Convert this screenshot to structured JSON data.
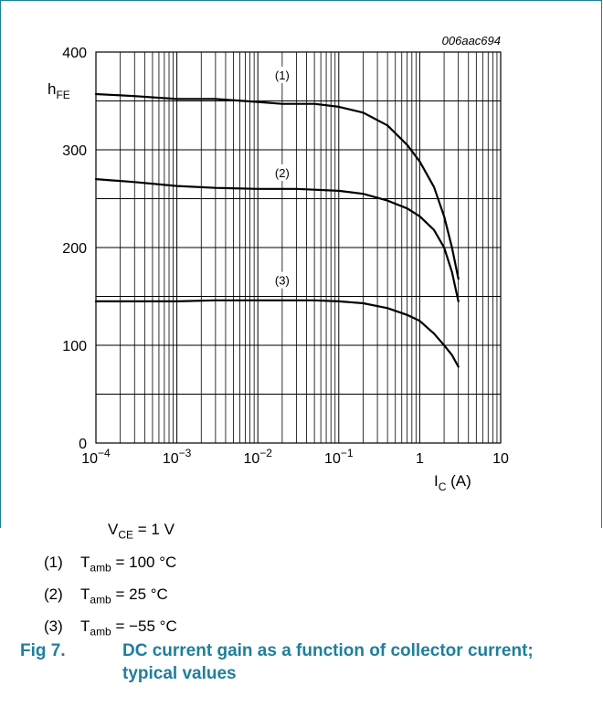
{
  "chart_data": {
    "type": "line",
    "code": "006aac694",
    "ylabel_main": "h",
    "ylabel_sub": "FE",
    "xlabel_main": "I",
    "xlabel_sub": "C",
    "xlabel_unit": "(A)",
    "x_scale": "log",
    "xlim": [
      0.0001,
      10
    ],
    "ylim": [
      0,
      400
    ],
    "grid": true,
    "x_ticks": [
      {
        "value": 0.0001,
        "base": "10",
        "exp": "−4"
      },
      {
        "value": 0.001,
        "base": "10",
        "exp": "−3"
      },
      {
        "value": 0.01,
        "base": "10",
        "exp": "−2"
      },
      {
        "value": 0.1,
        "base": "10",
        "exp": "−1"
      },
      {
        "value": 1,
        "base": "1",
        "exp": ""
      },
      {
        "value": 10,
        "base": "10",
        "exp": ""
      }
    ],
    "y_ticks": [
      {
        "value": 0,
        "label": "0"
      },
      {
        "value": 100,
        "label": "100"
      },
      {
        "value": 200,
        "label": "200"
      },
      {
        "value": 300,
        "label": "300"
      },
      {
        "value": 400,
        "label": "400"
      }
    ],
    "series": [
      {
        "label": "(1)",
        "label_at": [
          0.02,
          372
        ],
        "points": [
          [
            0.0001,
            357
          ],
          [
            0.0003,
            355
          ],
          [
            0.001,
            352
          ],
          [
            0.003,
            352
          ],
          [
            0.01,
            349
          ],
          [
            0.02,
            347
          ],
          [
            0.05,
            347
          ],
          [
            0.1,
            344
          ],
          [
            0.2,
            338
          ],
          [
            0.4,
            325
          ],
          [
            0.7,
            305
          ],
          [
            1.0,
            288
          ],
          [
            1.5,
            262
          ],
          [
            2.0,
            232
          ],
          [
            2.5,
            200
          ],
          [
            3.0,
            168
          ]
        ]
      },
      {
        "label": "(2)",
        "label_at": [
          0.02,
          272
        ],
        "points": [
          [
            0.0001,
            270
          ],
          [
            0.0003,
            267
          ],
          [
            0.001,
            263
          ],
          [
            0.003,
            261
          ],
          [
            0.01,
            260
          ],
          [
            0.03,
            260
          ],
          [
            0.1,
            258
          ],
          [
            0.2,
            255
          ],
          [
            0.4,
            248
          ],
          [
            0.7,
            240
          ],
          [
            1.0,
            232
          ],
          [
            1.5,
            218
          ],
          [
            2.0,
            200
          ],
          [
            2.5,
            175
          ],
          [
            3.0,
            145
          ]
        ]
      },
      {
        "label": "(3)",
        "label_at": [
          0.02,
          162
        ],
        "points": [
          [
            0.0001,
            145
          ],
          [
            0.001,
            145
          ],
          [
            0.003,
            146
          ],
          [
            0.01,
            146
          ],
          [
            0.05,
            146
          ],
          [
            0.1,
            145
          ],
          [
            0.2,
            143
          ],
          [
            0.4,
            138
          ],
          [
            0.7,
            131
          ],
          [
            1.0,
            125
          ],
          [
            1.5,
            112
          ],
          [
            2.0,
            100
          ],
          [
            2.5,
            90
          ],
          [
            3.0,
            78
          ]
        ]
      }
    ]
  },
  "conditions": {
    "vce": {
      "main": "V",
      "sub": "CE",
      "rest": " = 1 V"
    },
    "items": [
      {
        "num": "(1)",
        "main": "T",
        "sub": "amb",
        "rest": " = 100 °C"
      },
      {
        "num": "(2)",
        "main": "T",
        "sub": "amb",
        "rest": " = 25 °C"
      },
      {
        "num": "(3)",
        "main": "T",
        "sub": "amb",
        "rest": " = −55 °C"
      }
    ]
  },
  "caption": {
    "number": "Fig 7.",
    "text": "DC current gain as a function of collector current; typical values"
  }
}
